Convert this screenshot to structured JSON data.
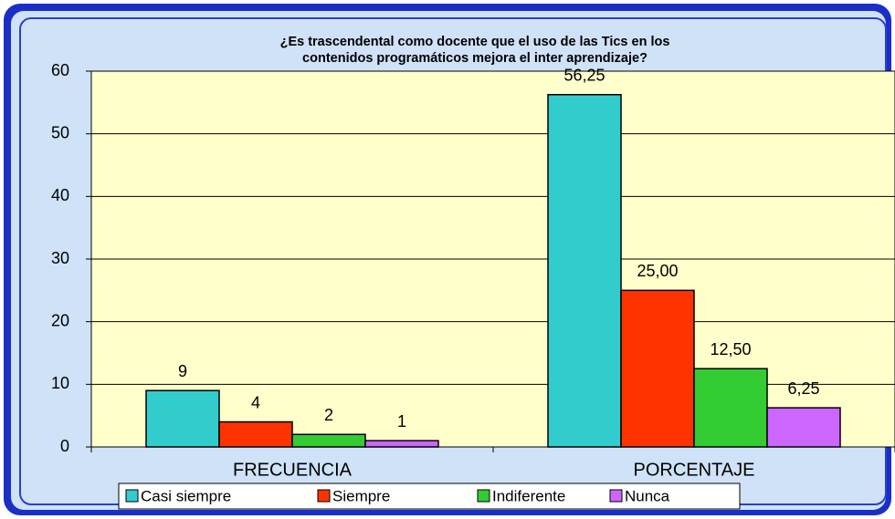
{
  "chart_data": {
    "type": "bar",
    "title": [
      "¿Es trascendental como docente que el uso de las Tics en los",
      "contenidos programáticos mejora el inter aprendizaje?"
    ],
    "categories": [
      "FRECUENCIA",
      "PORCENTAJE"
    ],
    "series": [
      {
        "name": "Casi siempre",
        "color": "#33cccc",
        "values": [
          9,
          56.25
        ],
        "value_labels": [
          "9",
          "56,25"
        ]
      },
      {
        "name": "Siempre",
        "color": "#ff3300",
        "values": [
          4,
          25
        ],
        "value_labels": [
          "4",
          "25,00"
        ]
      },
      {
        "name": "Indiferente",
        "color": "#33cc33",
        "values": [
          2,
          12.5
        ],
        "value_labels": [
          "2",
          "12,50"
        ]
      },
      {
        "name": "Nunca",
        "color": "#cc66ff",
        "values": [
          1,
          6.25
        ],
        "value_labels": [
          "1",
          "6,25"
        ]
      }
    ],
    "ylim": [
      0,
      60
    ],
    "yticks": [
      0,
      10,
      20,
      30,
      40,
      50,
      60
    ],
    "grid": true,
    "legend": "bottom"
  }
}
